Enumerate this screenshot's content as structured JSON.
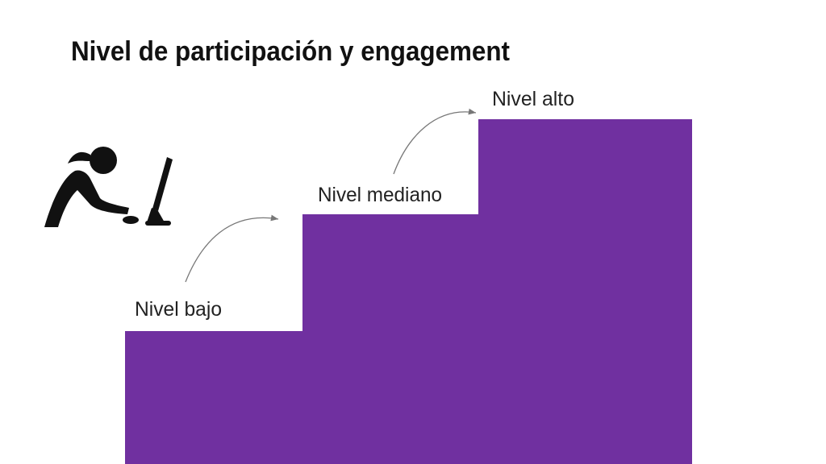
{
  "title": "Nivel de participación y engagement",
  "levels": [
    "Nivel bajo",
    "Nivel mediano",
    "Nivel alto"
  ]
}
